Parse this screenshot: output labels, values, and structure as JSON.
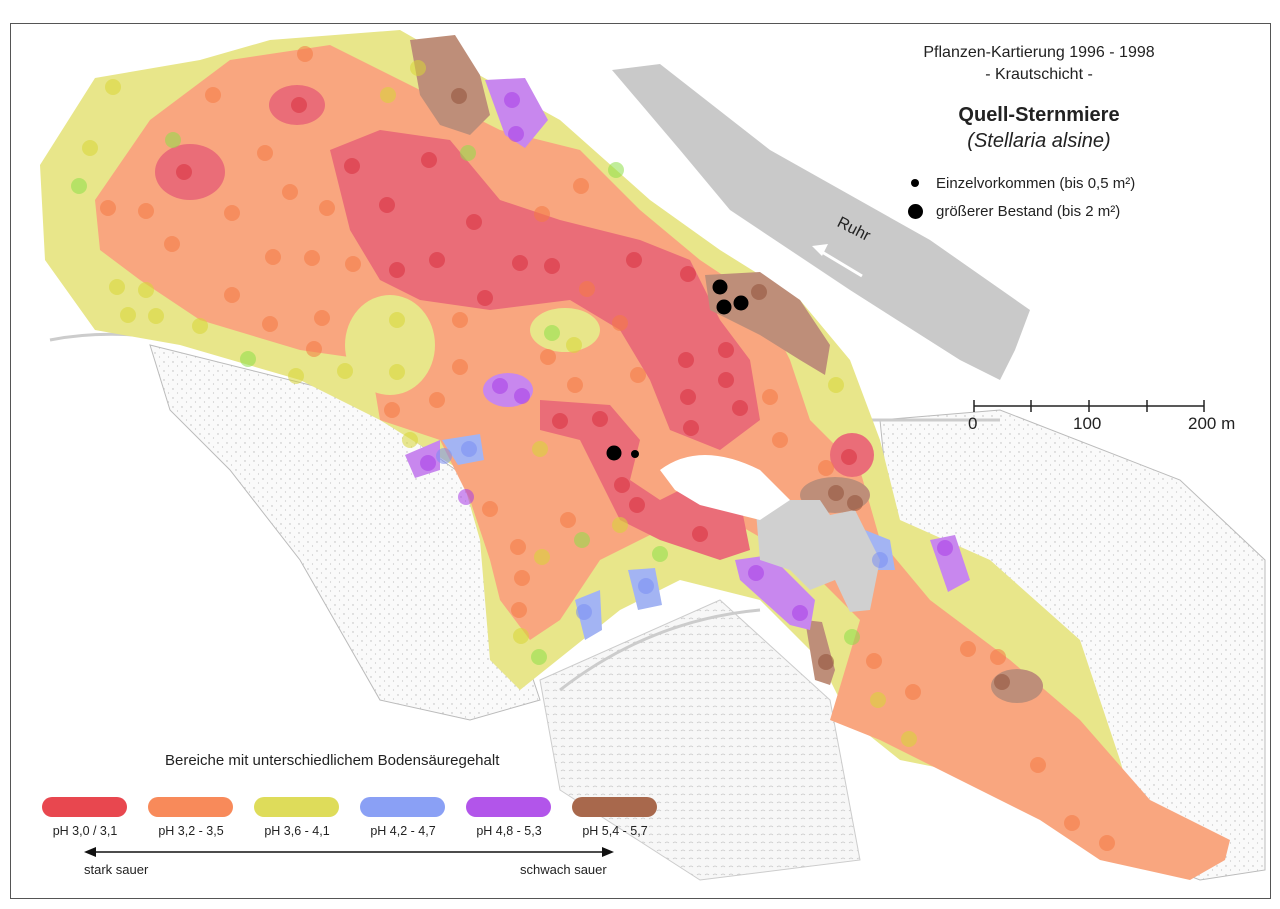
{
  "title": {
    "survey": "Pflanzen-Kartierung 1996 - 1998",
    "layer": "- Krautschicht -",
    "species": "Quell-Sternmiere",
    "species_latin": "(Stellaria alsine)"
  },
  "symbols": [
    {
      "label": "Einzelvorkommen (bis 0,5 m²)",
      "icon": "small-black-dot"
    },
    {
      "label": "größerer Bestand (bis 2 m²)",
      "icon": "large-black-dot"
    }
  ],
  "river": {
    "label": "Ruhr"
  },
  "scale_bar": {
    "labels": [
      "0",
      "100",
      "200 m"
    ]
  },
  "legend": {
    "title": "Bereiche mit unterschiedlichem Bodensäuregehalt",
    "classes": [
      {
        "label": "pH 3,0 / 3,1",
        "color": "#e8474f"
      },
      {
        "label": "pH 3,2 - 3,5",
        "color": "#f88a5a"
      },
      {
        "label": "pH 3,6 - 4,1",
        "color": "#dedc5a"
      },
      {
        "label": "pH 4,2 - 4,7",
        "color": "#8aa0f5"
      },
      {
        "label": "pH 4,8 - 5,3",
        "color": "#b255ea"
      },
      {
        "label": "pH 5,4 - 5,7",
        "color": "#a8684c"
      }
    ],
    "arrow_left": "stark sauer",
    "arrow_right": "schwach sauer"
  }
}
